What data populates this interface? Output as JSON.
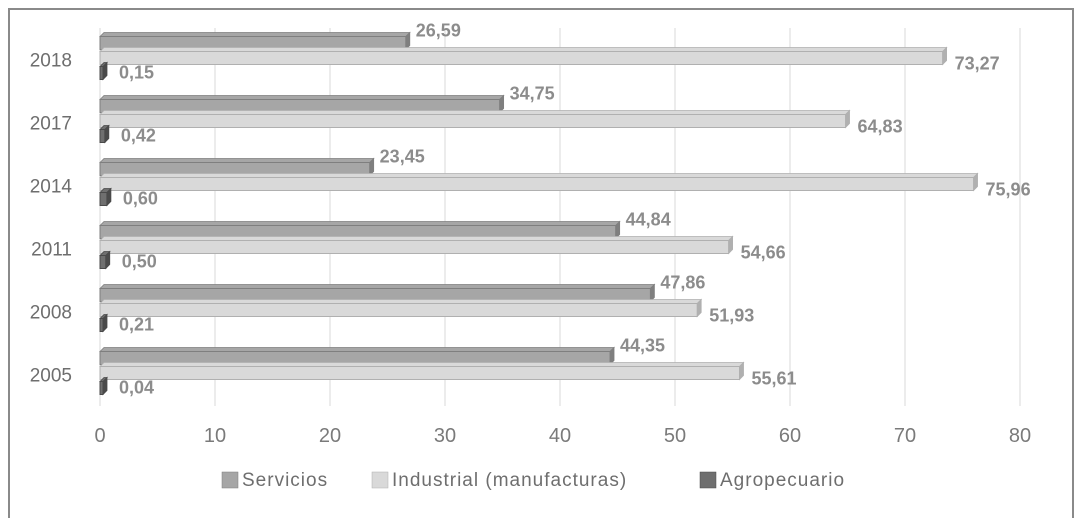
{
  "chart_data": {
    "type": "bar",
    "orientation": "horizontal",
    "categories": [
      "2005",
      "2008",
      "2011",
      "2014",
      "2017",
      "2018"
    ],
    "series": [
      {
        "name": "Servicios",
        "color": "#a6a6a6",
        "edge": "#7f7f7f",
        "values": [
          44.35,
          47.86,
          44.84,
          23.45,
          34.75,
          26.59
        ],
        "labels": [
          "44,35",
          "47,86",
          "44,84",
          "23,45",
          "34,75",
          "26,59"
        ]
      },
      {
        "name": "Industrial (manufacturas)",
        "color": "#d9d9d9",
        "edge": "#b0b0b0",
        "values": [
          55.61,
          51.93,
          54.66,
          75.96,
          64.83,
          73.27
        ],
        "labels": [
          "55,61",
          "51,93",
          "54,66",
          "75,96",
          "64,83",
          "73,27"
        ]
      },
      {
        "name": "Agropecuario",
        "color": "#6f6f6f",
        "edge": "#4a4a4a",
        "values": [
          0.04,
          0.21,
          0.5,
          0.6,
          0.42,
          0.15
        ],
        "labels": [
          "0,04",
          "0,21",
          "0,50",
          "0,60",
          "0,42",
          "0,15"
        ]
      }
    ],
    "xlim": [
      0,
      80
    ],
    "xticks": [
      0,
      10,
      20,
      30,
      40,
      50,
      60,
      70,
      80
    ],
    "grid": true,
    "legend": "bottom",
    "title": "",
    "xlabel": "",
    "ylabel": ""
  }
}
